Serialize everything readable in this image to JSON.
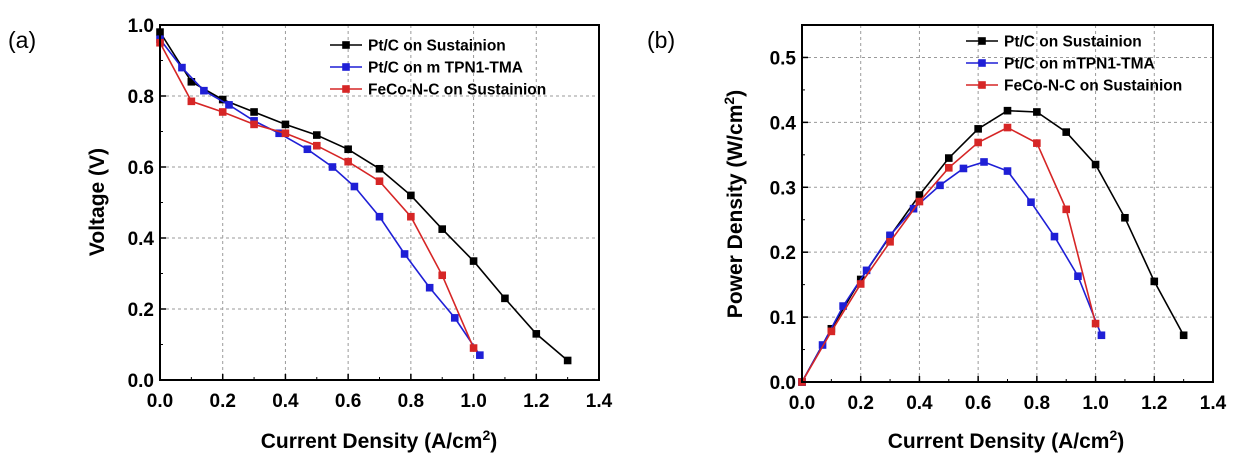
{
  "chart_data": [
    {
      "type": "line",
      "panel_label": "(a)",
      "xlabel": "Current Density (A/cm²)",
      "xlabel_main": "Current Density (A/cm",
      "xlabel_sup": "2",
      "xlabel_end": ")",
      "ylabel": "Voltage (V)",
      "xlim": [
        0.0,
        1.4
      ],
      "ylim": [
        0.0,
        1.0
      ],
      "xticks": [
        "0.0",
        "0.2",
        "0.4",
        "0.6",
        "0.8",
        "1.0",
        "1.2",
        "1.4"
      ],
      "yticks": [
        "0.0",
        "0.2",
        "0.4",
        "0.6",
        "0.8",
        "1.0"
      ],
      "grid": true,
      "legend_position": "top-right",
      "series": [
        {
          "name": "Pt/C on Sustainion",
          "color": "#000000",
          "x": [
            0.0,
            0.1,
            0.2,
            0.3,
            0.4,
            0.5,
            0.6,
            0.7,
            0.8,
            0.9,
            1.0,
            1.1,
            1.2,
            1.3
          ],
          "y": [
            0.98,
            0.84,
            0.79,
            0.755,
            0.72,
            0.69,
            0.65,
            0.595,
            0.52,
            0.425,
            0.335,
            0.23,
            0.13,
            0.055
          ]
        },
        {
          "name": "Pt/C on m TPN1-TMA",
          "color": "#1f1fd6",
          "x": [
            0.0,
            0.07,
            0.14,
            0.22,
            0.3,
            0.38,
            0.47,
            0.55,
            0.62,
            0.7,
            0.78,
            0.86,
            0.94,
            1.02
          ],
          "y": [
            0.96,
            0.88,
            0.815,
            0.775,
            0.73,
            0.695,
            0.65,
            0.6,
            0.545,
            0.46,
            0.355,
            0.26,
            0.175,
            0.07
          ]
        },
        {
          "name": "FeCo-N-C on Sustainion",
          "color": "#d62626",
          "x": [
            0.0,
            0.1,
            0.2,
            0.3,
            0.4,
            0.5,
            0.6,
            0.7,
            0.8,
            0.9,
            1.0
          ],
          "y": [
            0.95,
            0.785,
            0.755,
            0.72,
            0.695,
            0.66,
            0.615,
            0.56,
            0.46,
            0.295,
            0.09
          ]
        }
      ]
    },
    {
      "type": "line",
      "panel_label": "(b)",
      "xlabel": "Current Density (A/cm²)",
      "xlabel_main": "Current Density (A/cm",
      "xlabel_sup": "2",
      "xlabel_end": ")",
      "ylabel": "Power Density (W/cm²)",
      "ylabel_main": "Power Density (W/cm",
      "ylabel_sup": "2",
      "ylabel_end": ")",
      "xlim": [
        0.0,
        1.4
      ],
      "ylim": [
        0.0,
        0.55
      ],
      "xticks": [
        "0.0",
        "0.2",
        "0.4",
        "0.6",
        "0.8",
        "1.0",
        "1.2",
        "1.4"
      ],
      "yticks": [
        "0.0",
        "0.1",
        "0.2",
        "0.3",
        "0.4",
        "0.5"
      ],
      "grid": true,
      "legend_position": "top-right",
      "series": [
        {
          "name": "Pt/C on Sustainion",
          "color": "#000000",
          "x": [
            0.0,
            0.1,
            0.2,
            0.3,
            0.4,
            0.5,
            0.6,
            0.7,
            0.8,
            0.9,
            1.0,
            1.1,
            1.2,
            1.3
          ],
          "y": [
            0.0,
            0.082,
            0.158,
            0.225,
            0.288,
            0.345,
            0.39,
            0.418,
            0.416,
            0.385,
            0.335,
            0.253,
            0.155,
            0.072
          ]
        },
        {
          "name": "Pt/C on mTPN1-TMA",
          "color": "#1f1fd6",
          "x": [
            0.0,
            0.07,
            0.14,
            0.22,
            0.3,
            0.38,
            0.47,
            0.55,
            0.62,
            0.7,
            0.78,
            0.86,
            0.94,
            1.02
          ],
          "y": [
            0.0,
            0.057,
            0.117,
            0.172,
            0.226,
            0.267,
            0.303,
            0.329,
            0.339,
            0.325,
            0.277,
            0.224,
            0.163,
            0.072
          ]
        },
        {
          "name": "FeCo-N-C on Sustainion",
          "color": "#d62626",
          "x": [
            0.0,
            0.1,
            0.2,
            0.3,
            0.4,
            0.5,
            0.6,
            0.7,
            0.8,
            0.9,
            1.0
          ],
          "y": [
            0.0,
            0.078,
            0.151,
            0.216,
            0.278,
            0.33,
            0.369,
            0.392,
            0.368,
            0.266,
            0.09
          ]
        }
      ]
    }
  ]
}
